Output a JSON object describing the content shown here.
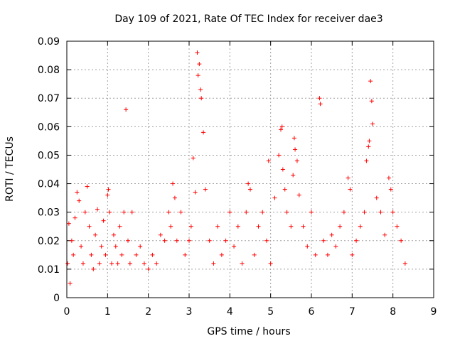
{
  "chart_data": {
    "type": "scatter",
    "title": "Day 109 of 2021, Rate Of TEC Index for receiver dae3",
    "xlabel": "GPS time / hours",
    "ylabel": "ROTI / TECUs",
    "xlim": [
      0,
      9
    ],
    "ylim": [
      0,
      0.09
    ],
    "x_ticks": [
      "0",
      "1",
      "2",
      "3",
      "4",
      "5",
      "6",
      "7",
      "8",
      "9"
    ],
    "y_ticks": [
      "0",
      "0.01",
      "0.02",
      "0.03",
      "0.04",
      "0.05",
      "0.06",
      "0.07",
      "0.08",
      "0.09"
    ],
    "grid": true,
    "marker": "+",
    "marker_color": "#ff0000",
    "series": [
      {
        "x": [
          0.02,
          0.05,
          0.08,
          0.12,
          0.16,
          0.2,
          0.25,
          0.3,
          0.35,
          0.4,
          0.45,
          0.5,
          0.55,
          0.6,
          0.65,
          0.7,
          0.75,
          0.8,
          0.85,
          0.9,
          0.95,
          1.0,
          1.02,
          1.05,
          1.1,
          1.15,
          1.2,
          1.25,
          1.3,
          1.35,
          1.4,
          1.45,
          1.5,
          1.55,
          1.6,
          1.7,
          1.8,
          1.9,
          2.0,
          2.1,
          2.2,
          2.3,
          2.4,
          2.5,
          2.55,
          2.6,
          2.65,
          2.7,
          2.8,
          2.9,
          3.0,
          3.05,
          3.1,
          3.15,
          3.2,
          3.22,
          3.25,
          3.28,
          3.3,
          3.35,
          3.4,
          3.5,
          3.6,
          3.7,
          3.8,
          3.9,
          4.0,
          4.1,
          4.2,
          4.3,
          4.4,
          4.45,
          4.5,
          4.6,
          4.7,
          4.8,
          4.9,
          4.95,
          5.0,
          5.1,
          5.2,
          5.25,
          5.28,
          5.3,
          5.35,
          5.4,
          5.5,
          5.55,
          5.58,
          5.6,
          5.65,
          5.7,
          5.8,
          5.9,
          6.0,
          6.1,
          6.2,
          6.22,
          6.3,
          6.4,
          6.5,
          6.6,
          6.7,
          6.8,
          6.9,
          6.95,
          7.0,
          7.1,
          7.2,
          7.3,
          7.35,
          7.4,
          7.42,
          7.45,
          7.48,
          7.5,
          7.6,
          7.7,
          7.8,
          7.9,
          7.95,
          8.0,
          8.1,
          8.2,
          8.3
        ],
        "y": [
          0.012,
          0.026,
          0.005,
          0.02,
          0.015,
          0.028,
          0.037,
          0.034,
          0.018,
          0.012,
          0.03,
          0.039,
          0.025,
          0.015,
          0.01,
          0.022,
          0.031,
          0.012,
          0.018,
          0.027,
          0.015,
          0.036,
          0.038,
          0.03,
          0.012,
          0.022,
          0.018,
          0.012,
          0.025,
          0.015,
          0.03,
          0.066,
          0.02,
          0.012,
          0.03,
          0.015,
          0.018,
          0.012,
          0.01,
          0.015,
          0.012,
          0.022,
          0.02,
          0.03,
          0.025,
          0.04,
          0.035,
          0.02,
          0.03,
          0.015,
          0.02,
          0.025,
          0.049,
          0.037,
          0.086,
          0.078,
          0.082,
          0.073,
          0.07,
          0.058,
          0.038,
          0.02,
          0.012,
          0.025,
          0.015,
          0.02,
          0.03,
          0.018,
          0.025,
          0.012,
          0.03,
          0.04,
          0.038,
          0.015,
          0.025,
          0.03,
          0.02,
          0.048,
          0.012,
          0.035,
          0.05,
          0.059,
          0.06,
          0.045,
          0.038,
          0.03,
          0.025,
          0.043,
          0.056,
          0.052,
          0.048,
          0.036,
          0.025,
          0.018,
          0.03,
          0.015,
          0.07,
          0.068,
          0.02,
          0.015,
          0.022,
          0.018,
          0.025,
          0.03,
          0.042,
          0.038,
          0.015,
          0.02,
          0.025,
          0.03,
          0.048,
          0.053,
          0.055,
          0.076,
          0.069,
          0.061,
          0.035,
          0.03,
          0.022,
          0.042,
          0.038,
          0.03,
          0.025,
          0.02,
          0.012
        ]
      }
    ]
  }
}
